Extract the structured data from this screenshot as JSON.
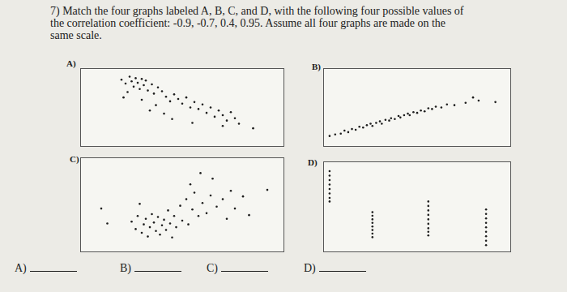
{
  "question": {
    "lines": [
      "7) Match the four graphs labeled A, B, C, and D, with the following four possible values of",
      "the correlation coefficient: -0.9, -0.7, 0.4, 0.95. Assume all four graphs are made on the",
      "same scale."
    ]
  },
  "answers": {
    "labels": [
      "A)",
      "B)",
      "C)",
      "D)"
    ]
  },
  "chart_data": [
    {
      "type": "scatter",
      "label": "A)",
      "color": "#1e1e1e",
      "marker": "circle",
      "tick_labels": false,
      "xlim": [
        0,
        10
      ],
      "ylim": [
        0,
        10
      ],
      "x": [
        2.0,
        2.2,
        2.4,
        2.5,
        2.6,
        2.7,
        2.8,
        2.9,
        3.0,
        3.1,
        3.2,
        3.3,
        2.3,
        3.5,
        3.6,
        3.8,
        2.1,
        3.0,
        4.0,
        4.2,
        4.4,
        4.6,
        4.8,
        5.0,
        5.2,
        5.4,
        3.4,
        4.1,
        5.6,
        5.8,
        6.0,
        6.2,
        6.4,
        6.6,
        6.8,
        7.0,
        7.2,
        7.4,
        7.6,
        7.8,
        7.0,
        8.5,
        4.5,
        5.5,
        3.7
      ],
      "values": [
        8.6,
        8.1,
        9.0,
        8.4,
        7.7,
        8.8,
        8.2,
        7.4,
        8.7,
        7.9,
        8.5,
        7.2,
        7.0,
        8.0,
        6.8,
        7.6,
        6.3,
        6.0,
        7.1,
        6.4,
        5.8,
        6.7,
        6.1,
        5.5,
        6.3,
        5.0,
        4.6,
        4.2,
        5.7,
        4.8,
        5.4,
        4.3,
        5.0,
        3.8,
        4.6,
        4.0,
        3.3,
        4.4,
        3.6,
        2.9,
        2.6,
        2.3,
        3.5,
        3.0,
        5.3
      ]
    },
    {
      "type": "scatter",
      "label": "B)",
      "color": "#1e1e1e",
      "marker": "circle",
      "tick_labels": false,
      "xlim": [
        0,
        10
      ],
      "ylim": [
        0,
        10
      ],
      "x": [
        0.3,
        0.6,
        0.9,
        1.1,
        1.3,
        1.5,
        1.7,
        1.9,
        2.1,
        2.3,
        2.5,
        2.6,
        2.8,
        3.0,
        3.1,
        3.3,
        3.5,
        3.6,
        3.8,
        4.0,
        4.1,
        4.3,
        4.5,
        4.6,
        4.8,
        5.0,
        5.2,
        5.4,
        5.6,
        5.8,
        6.0,
        6.3,
        6.6,
        7.0,
        7.6,
        8.0,
        8.3,
        9.2
      ],
      "values": [
        1.3,
        1.5,
        1.6,
        2.0,
        1.8,
        2.2,
        2.1,
        2.5,
        2.4,
        2.7,
        2.9,
        2.6,
        3.0,
        3.2,
        2.9,
        3.4,
        3.3,
        3.6,
        3.5,
        3.9,
        3.7,
        4.0,
        4.2,
        4.0,
        4.4,
        4.3,
        4.6,
        4.5,
        4.9,
        4.8,
        5.1,
        5.0,
        5.4,
        5.3,
        5.6,
        6.3,
        5.9,
        5.7
      ]
    },
    {
      "type": "scatter",
      "label": "C)",
      "color": "#1e1e1e",
      "marker": "circle",
      "tick_labels": false,
      "xlim": [
        0,
        10
      ],
      "ylim": [
        0,
        10
      ],
      "x": [
        1.0,
        1.3,
        2.5,
        2.7,
        2.8,
        3.0,
        3.1,
        3.2,
        3.3,
        3.4,
        3.5,
        3.6,
        3.7,
        3.8,
        3.9,
        4.0,
        4.1,
        4.2,
        4.3,
        4.4,
        4.5,
        4.6,
        4.7,
        4.9,
        5.0,
        5.2,
        5.3,
        5.5,
        5.6,
        5.8,
        6.0,
        6.2,
        6.4,
        6.5,
        6.7,
        7.0,
        7.2,
        7.4,
        7.6,
        8.0,
        8.3,
        5.9,
        5.4,
        2.9,
        9.2
      ],
      "values": [
        4.6,
        3.0,
        3.2,
        2.4,
        3.8,
        2.0,
        2.9,
        3.5,
        1.6,
        2.6,
        4.0,
        3.1,
        2.2,
        3.7,
        1.8,
        2.8,
        3.4,
        2.3,
        4.4,
        3.0,
        1.5,
        3.8,
        2.6,
        4.9,
        3.3,
        5.6,
        2.9,
        4.5,
        6.3,
        3.8,
        5.2,
        4.1,
        6.0,
        7.8,
        4.8,
        5.6,
        3.5,
        6.5,
        4.6,
        5.9,
        3.9,
        8.4,
        7.2,
        5.1,
        6.6
      ]
    },
    {
      "type": "scatter",
      "label": "D)",
      "color": "#1e1e1e",
      "marker": "circle",
      "tick_labels": false,
      "xlim": [
        0,
        10
      ],
      "ylim": [
        0,
        10
      ],
      "x": [
        0.3,
        0.3,
        0.3,
        0.3,
        0.3,
        0.3,
        0.3,
        0.3,
        2.6,
        2.6,
        2.6,
        2.6,
        2.6,
        2.6,
        2.6,
        2.6,
        5.6,
        5.6,
        5.6,
        5.6,
        5.6,
        5.6,
        5.6,
        5.6,
        5.6,
        8.7,
        8.7,
        8.7,
        8.7,
        8.7,
        8.7,
        8.7,
        8.7,
        8.7
      ],
      "values": [
        9.0,
        8.5,
        8.0,
        7.5,
        7.0,
        6.5,
        6.0,
        5.6,
        4.4,
        4.0,
        3.6,
        3.2,
        2.8,
        2.4,
        2.0,
        1.6,
        5.6,
        5.1,
        4.6,
        4.1,
        3.6,
        3.1,
        2.6,
        2.2,
        1.8,
        4.7,
        4.2,
        3.7,
        3.2,
        2.7,
        2.2,
        1.7,
        1.2,
        0.7
      ]
    }
  ]
}
